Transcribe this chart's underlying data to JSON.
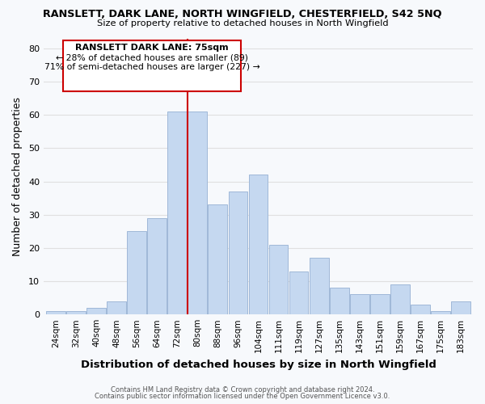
{
  "title": "RANSLETT, DARK LANE, NORTH WINGFIELD, CHESTERFIELD, S42 5NQ",
  "subtitle": "Size of property relative to detached houses in North Wingfield",
  "xlabel": "Distribution of detached houses by size in North Wingfield",
  "ylabel": "Number of detached properties",
  "categories": [
    "24sqm",
    "32sqm",
    "40sqm",
    "48sqm",
    "56sqm",
    "64sqm",
    "72sqm",
    "80sqm",
    "88sqm",
    "96sqm",
    "104sqm",
    "111sqm",
    "119sqm",
    "127sqm",
    "135sqm",
    "143sqm",
    "151sqm",
    "159sqm",
    "167sqm",
    "175sqm",
    "183sqm"
  ],
  "values": [
    1,
    1,
    2,
    4,
    25,
    29,
    61,
    61,
    33,
    37,
    42,
    21,
    13,
    17,
    8,
    6,
    6,
    9,
    3,
    1,
    4
  ],
  "bar_color": "#c5d8f0",
  "bar_edge_color": "#a0b8d8",
  "vline_x": 6.5,
  "vline_color": "#cc0000",
  "annotation_title": "RANSLETT DARK LANE: 75sqm",
  "annotation_line1": "← 28% of detached houses are smaller (89)",
  "annotation_line2": "71% of semi-detached houses are larger (227) →",
  "annotation_box_color": "#ffffff",
  "annotation_box_edge": "#cc0000",
  "ylim": [
    0,
    83
  ],
  "yticks": [
    0,
    10,
    20,
    30,
    40,
    50,
    60,
    70,
    80
  ],
  "grid_color": "#e0e0e0",
  "background_color": "#f7f9fc",
  "footer1": "Contains HM Land Registry data © Crown copyright and database right 2024.",
  "footer2": "Contains public sector information licensed under the Open Government Licence v3.0."
}
